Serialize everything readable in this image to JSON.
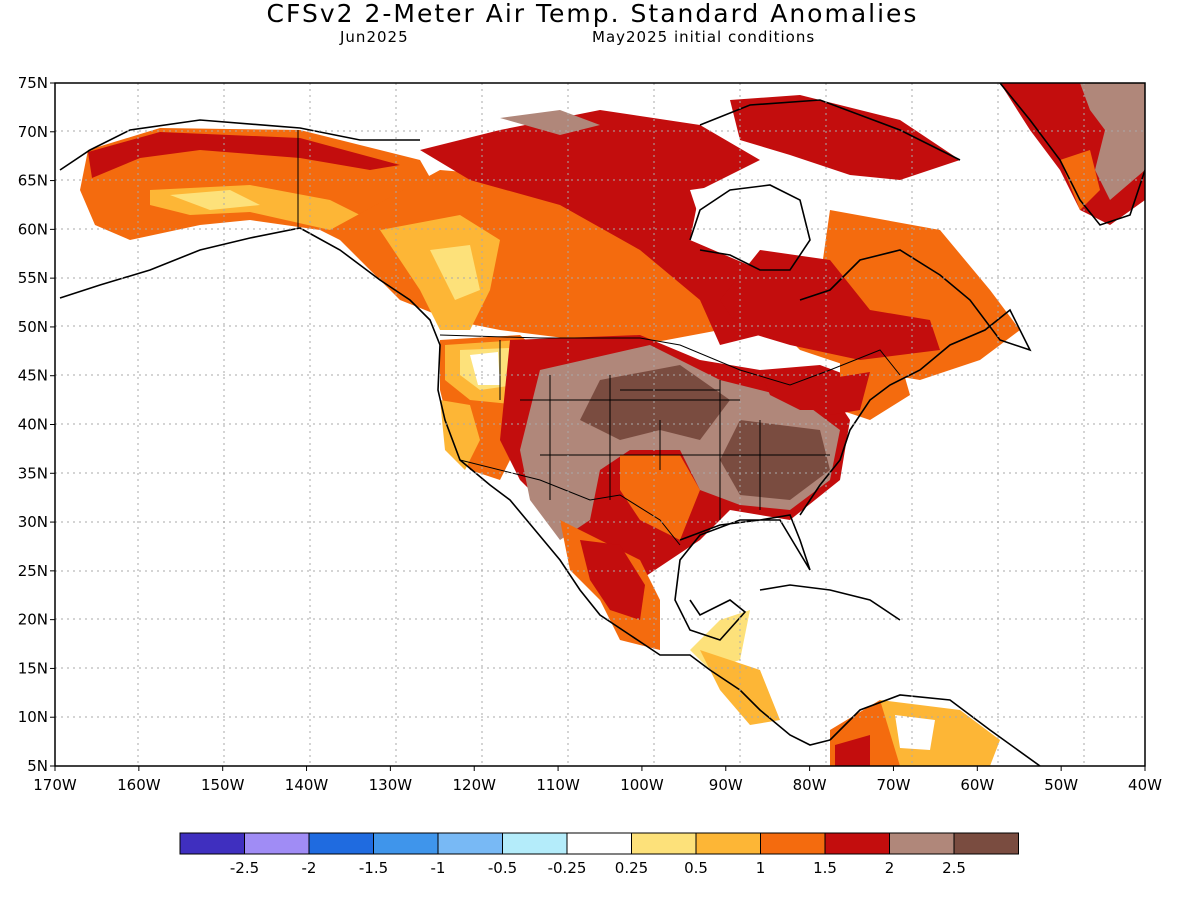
{
  "header": {
    "title": "CFSv2 2-Meter Air Temp. Standard Anomalies",
    "valid_month": "Jun2025",
    "init_conditions": "May2025 initial conditions"
  },
  "map": {
    "lat_ticks": [
      "75N",
      "70N",
      "65N",
      "60N",
      "55N",
      "50N",
      "45N",
      "40N",
      "35N",
      "30N",
      "25N",
      "20N",
      "15N",
      "10N",
      "5N"
    ],
    "lon_ticks": [
      "170W",
      "160W",
      "150W",
      "140W",
      "130W",
      "120W",
      "110W",
      "100W",
      "90W",
      "80W",
      "70W",
      "60W",
      "50W",
      "40W"
    ]
  },
  "legend": {
    "colors": [
      "#3f2fbf",
      "#a08cf5",
      "#1f6be0",
      "#3f95eb",
      "#78b9f5",
      "#b4ecfa",
      "#ffffff",
      "#fde17a",
      "#fdb636",
      "#f46b0e",
      "#c30d0d",
      "#b0877a",
      "#7a4c40"
    ],
    "labels": [
      "-2.5",
      "-2",
      "-1.5",
      "-1",
      "-0.5",
      "-0.25",
      "0.25",
      "0.5",
      "1",
      "1.5",
      "2",
      "2.5"
    ]
  }
}
